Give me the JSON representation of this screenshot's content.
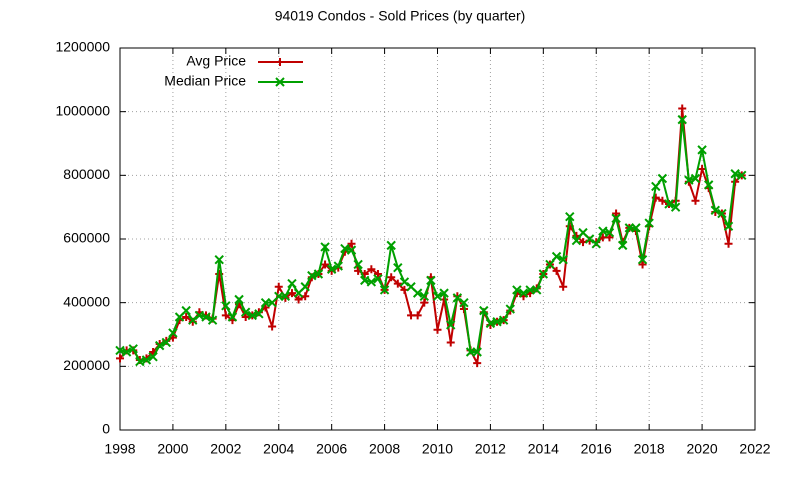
{
  "chart_data": {
    "type": "line",
    "title": "94019 Condos - Sold Prices (by quarter)",
    "x": [
      1998,
      1998.25,
      1998.5,
      1998.75,
      1999,
      1999.25,
      1999.5,
      1999.75,
      2000,
      2000.25,
      2000.5,
      2000.75,
      2001,
      2001.25,
      2001.5,
      2001.75,
      2002,
      2002.25,
      2002.5,
      2002.75,
      2003,
      2003.25,
      2003.5,
      2003.75,
      2004,
      2004.25,
      2004.5,
      2004.75,
      2005,
      2005.25,
      2005.5,
      2005.75,
      2006,
      2006.25,
      2006.5,
      2006.75,
      2007,
      2007.25,
      2007.5,
      2007.75,
      2008,
      2008.25,
      2008.5,
      2008.75,
      2009,
      2009.25,
      2009.5,
      2009.75,
      2010,
      2010.25,
      2010.5,
      2010.75,
      2011,
      2011.25,
      2011.5,
      2011.75,
      2012,
      2012.25,
      2012.5,
      2012.75,
      2013,
      2013.25,
      2013.5,
      2013.75,
      2014,
      2014.25,
      2014.5,
      2014.75,
      2015,
      2015.25,
      2015.5,
      2015.75,
      2016,
      2016.25,
      2016.5,
      2016.75,
      2017,
      2017.25,
      2017.5,
      2017.75,
      2018,
      2018.25,
      2018.5,
      2018.75,
      2019,
      2019.25,
      2019.5,
      2019.75,
      2020,
      2020.25,
      2020.5,
      2020.75,
      2021,
      2021.25,
      2021.5
    ],
    "series": [
      {
        "name": "Avg Price",
        "color": "#c00000",
        "marker": "plus",
        "values": [
          225000,
          250000,
          250000,
          220000,
          225000,
          245000,
          270000,
          280000,
          290000,
          345000,
          355000,
          340000,
          370000,
          360000,
          350000,
          490000,
          360000,
          345000,
          395000,
          355000,
          360000,
          370000,
          385000,
          325000,
          450000,
          415000,
          430000,
          410000,
          420000,
          480000,
          490000,
          520000,
          500000,
          510000,
          560000,
          585000,
          500000,
          490000,
          505000,
          490000,
          440000,
          480000,
          460000,
          440000,
          360000,
          360000,
          400000,
          480000,
          315000,
          410000,
          275000,
          420000,
          380000,
          250000,
          210000,
          370000,
          330000,
          340000,
          345000,
          375000,
          430000,
          420000,
          430000,
          445000,
          490000,
          520000,
          500000,
          450000,
          640000,
          610000,
          590000,
          595000,
          590000,
          605000,
          605000,
          680000,
          590000,
          635000,
          625000,
          520000,
          640000,
          730000,
          720000,
          710000,
          720000,
          1010000,
          780000,
          720000,
          820000,
          760000,
          685000,
          680000,
          585000,
          780000,
          800000
        ]
      },
      {
        "name": "Median Price",
        "color": "#00a000",
        "marker": "cross",
        "values": [
          250000,
          245000,
          255000,
          215000,
          220000,
          230000,
          265000,
          275000,
          305000,
          355000,
          375000,
          345000,
          360000,
          355000,
          345000,
          535000,
          390000,
          355000,
          410000,
          370000,
          360000,
          365000,
          400000,
          400000,
          420000,
          420000,
          460000,
          430000,
          450000,
          485000,
          490000,
          575000,
          505000,
          515000,
          570000,
          565000,
          520000,
          470000,
          465000,
          475000,
          440000,
          580000,
          510000,
          465000,
          450000,
          430000,
          420000,
          470000,
          420000,
          430000,
          330000,
          415000,
          400000,
          245000,
          245000,
          375000,
          335000,
          340000,
          345000,
          380000,
          440000,
          430000,
          440000,
          440000,
          490000,
          520000,
          545000,
          535000,
          670000,
          595000,
          620000,
          600000,
          585000,
          625000,
          620000,
          665000,
          580000,
          635000,
          635000,
          535000,
          650000,
          765000,
          790000,
          710000,
          700000,
          975000,
          785000,
          790000,
          880000,
          770000,
          690000,
          680000,
          640000,
          805000,
          800000
        ]
      }
    ],
    "xlim": [
      1998,
      2022
    ],
    "xticks": [
      1998,
      2000,
      2002,
      2004,
      2006,
      2008,
      2010,
      2012,
      2014,
      2016,
      2018,
      2020,
      2022
    ],
    "ylim": [
      0,
      1200000
    ],
    "yticks": [
      0,
      200000,
      400000,
      600000,
      800000,
      1000000,
      1200000
    ],
    "grid": true,
    "legend": "top-left"
  }
}
